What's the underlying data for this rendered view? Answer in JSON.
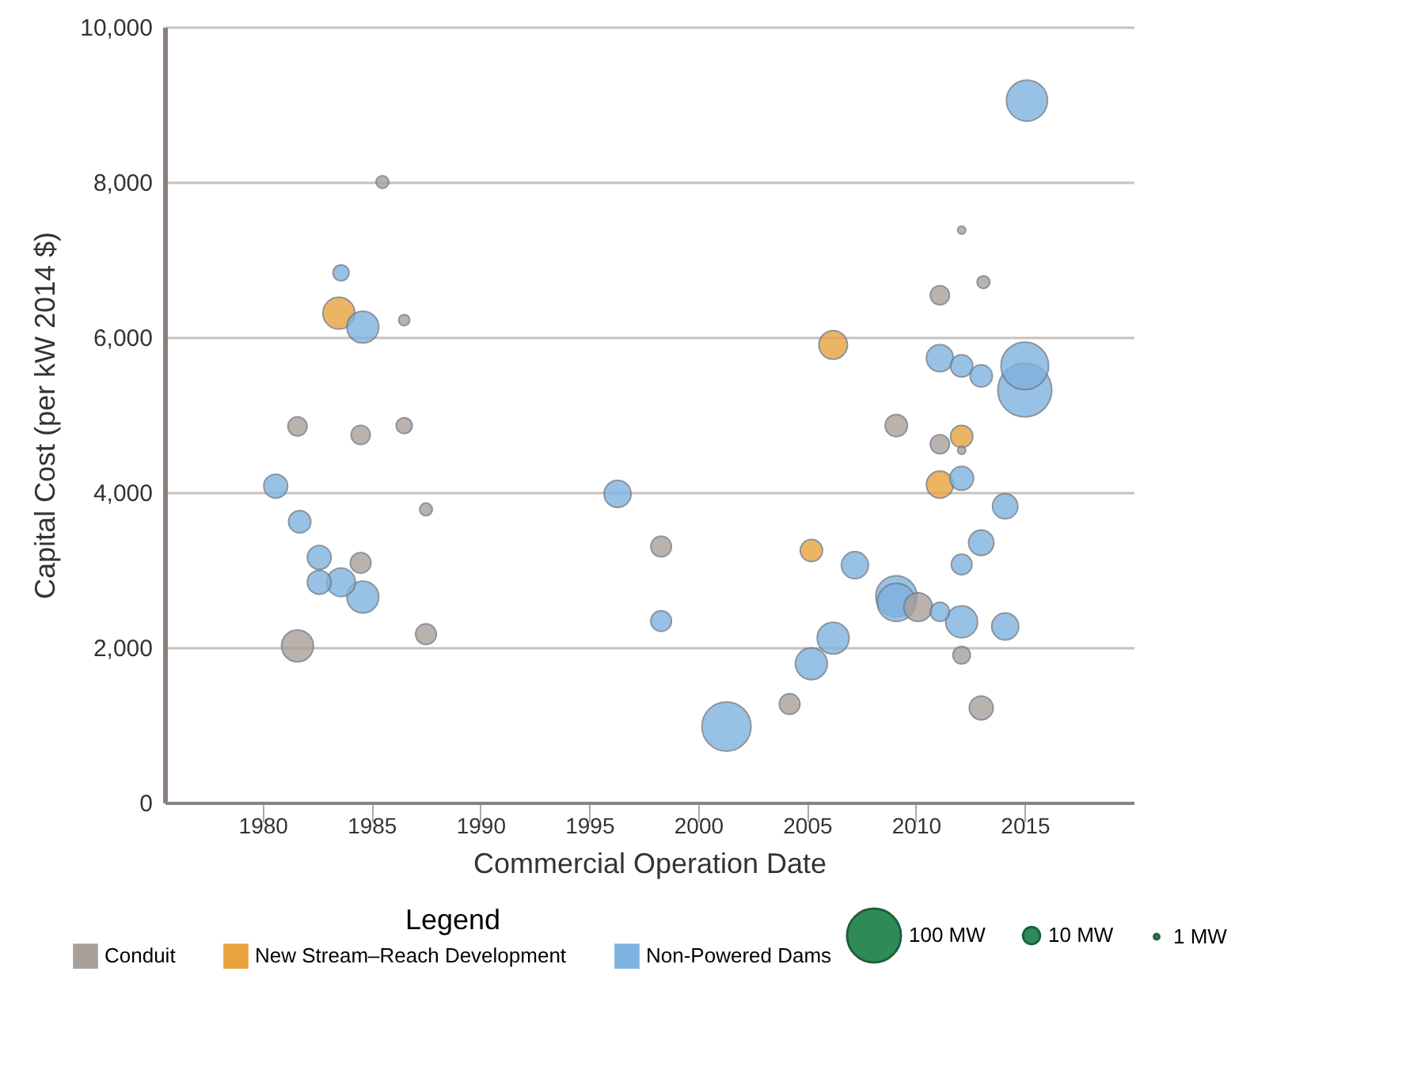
{
  "chart_data": {
    "type": "bubble",
    "xlabel": "Commercial Operation Date",
    "ylabel": "Capital Cost (per kW 2014 $)",
    "legend_title": "Legend",
    "legend": "bottom",
    "grid": "y",
    "marker": "circle",
    "xlim": [
      1975.5,
      2020
    ],
    "xticks": [
      1980,
      1985,
      1990,
      1995,
      2000,
      2005,
      2010,
      2015
    ],
    "ylim": [
      0,
      10000
    ],
    "yticks": [
      0,
      {
        "value": 2000,
        "label": "2,000"
      },
      {
        "value": 4000,
        "label": "4,000"
      },
      {
        "value": 6000,
        "label": "6,000"
      },
      {
        "value": 8000,
        "label": "8,000"
      },
      {
        "value": 10000,
        "label": "10,000"
      }
    ],
    "size_legend": [
      {
        "value": 100,
        "label": "100 MW"
      },
      {
        "value": 10,
        "label": "10 MW"
      },
      {
        "value": 1,
        "label": "1 MW"
      }
    ],
    "series": [
      {
        "name": "Conduit",
        "color": "#a89f99",
        "x": [
          1985.5,
          1986.5,
          1981.6,
          1984.5,
          1986.5,
          1987.5,
          1984.5,
          1987.5,
          1981.6,
          1998.3,
          2004.2,
          2012.1,
          2013.1,
          2011.1,
          2009.1,
          2011.1,
          2012.1,
          2010.1,
          2012.1,
          2013.0
        ],
        "values": [
          8000,
          6220,
          4850,
          4740,
          4860,
          3780,
          3090,
          2170,
          2020,
          3300,
          1270,
          7380,
          6710,
          6540,
          4860,
          4620,
          4540,
          2520,
          1900,
          1220
        ],
        "sizes": [
          5.5,
          4.2,
          12.5,
          12.5,
          8.7,
          5.5,
          14.6,
          14.6,
          35,
          14.6,
          14.6,
          2.2,
          5.5,
          12.5,
          17,
          12.5,
          2.2,
          28,
          10.5,
          19.5
        ]
      },
      {
        "name": "New Stream–Reach Development",
        "color": "#e8a33d",
        "x": [
          1983.5,
          2005.2,
          2006.2,
          2012.1,
          2011.1
        ],
        "values": [
          6310,
          3250,
          5900,
          4720,
          4100
        ],
        "sizes": [
          35,
          17,
          28,
          17,
          25
        ]
      },
      {
        "name": "Non-Powered Dams",
        "color": "#7fb2e0",
        "x": [
          1983.6,
          1984.6,
          1980.6,
          1981.7,
          1982.6,
          1982.6,
          1983.6,
          1984.6,
          1996.3,
          1998.3,
          2006.2,
          2005.2,
          2001.3,
          2015.1,
          2011.1,
          2012.1,
          2013.0,
          2015.0,
          2015.0,
          2012.1,
          2014.1,
          2013.0,
          2012.1,
          2007.2,
          2009.1,
          2009.1,
          2011.1,
          2012.1,
          2014.1
        ],
        "values": [
          6830,
          6130,
          4080,
          3620,
          3160,
          2840,
          2840,
          2650,
          3980,
          2340,
          2120,
          1790,
          980,
          9050,
          5730,
          5630,
          5500,
          5630,
          5320,
          4180,
          3820,
          3350,
          3070,
          3060,
          2660,
          2580,
          2460,
          2330,
          2270
        ],
        "sizes": [
          8.7,
          35,
          19.5,
          17,
          19.5,
          19.5,
          28,
          35,
          25,
          14.6,
          35,
          35,
          83,
          58,
          25,
          17,
          17,
          78,
          100,
          19.5,
          22,
          22,
          14.6,
          25,
          58,
          50,
          12.5,
          35,
          25
        ]
      }
    ]
  }
}
